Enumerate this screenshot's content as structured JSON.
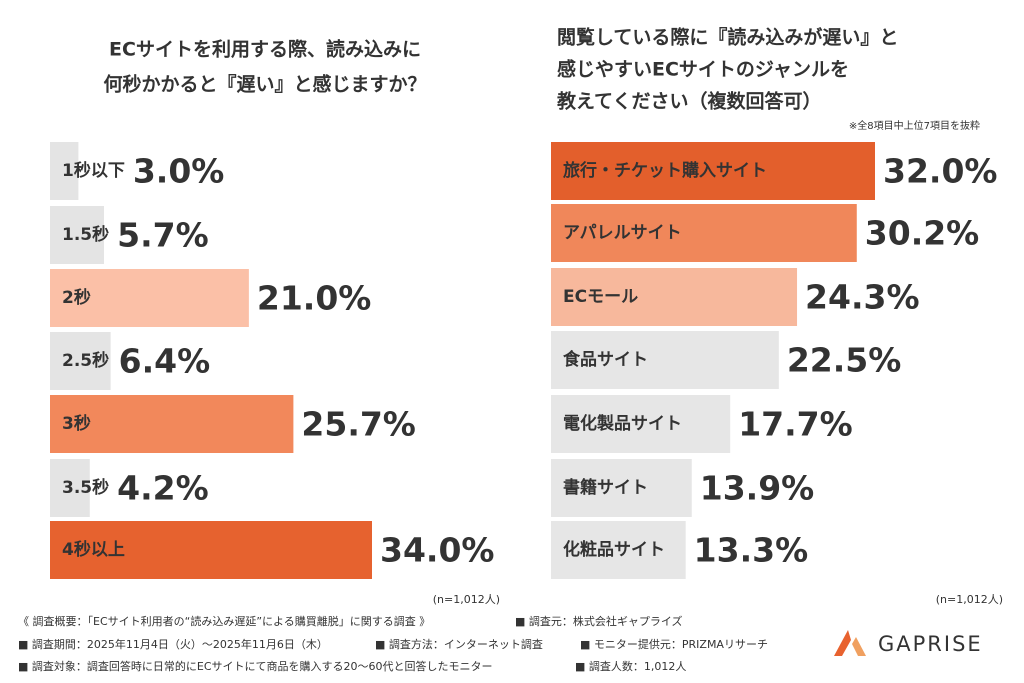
{
  "chart_data": [
    {
      "type": "bar",
      "orientation": "horizontal",
      "title": [
        "ECサイトを利用する際、読み込みに",
        "何秒かかると『遅い』と感じますか？"
      ],
      "categories": [
        "1秒以下",
        "1.5秒",
        "2秒",
        "2.5秒",
        "3秒",
        "3.5秒",
        "4秒以上"
      ],
      "values": [
        3.0,
        5.7,
        21.0,
        6.4,
        25.7,
        4.2,
        34.0
      ],
      "value_labels": [
        "3.0%",
        "5.7%",
        "21.0%",
        "6.4%",
        "25.7%",
        "4.2%",
        "34.0%"
      ],
      "colors": [
        "#e4e4e4",
        "#e4e4e4",
        "#fbc0a7",
        "#e4e4e4",
        "#f2885b",
        "#e4e4e4",
        "#e6622f"
      ],
      "value_colors": [
        "#4a4a4a",
        "#4a4a4a",
        "#fbc0a7",
        "#4a4a4a",
        "#f2885b",
        "#4a4a4a",
        "#e6622f"
      ],
      "category_colors": [
        "#555555",
        "#555555",
        "#ffffff",
        "#555555",
        "#ffffff",
        "#555555",
        "#ffffff"
      ],
      "sample_note": "(n=1,012人)"
    },
    {
      "type": "bar",
      "orientation": "horizontal",
      "title": [
        "閲覧している際に『読み込みが遅い』と",
        "感じやすいECサイトのジャンルを",
        "教えてください（複数回答可）"
      ],
      "subnote": "※全8項目中上位7項目を抜粋",
      "categories": [
        "旅行・チケット購入サイト",
        "アパレルサイト",
        "ECモール",
        "食品サイト",
        "電化製品サイト",
        "書籍サイト",
        "化粧品サイト"
      ],
      "values": [
        32.0,
        30.2,
        24.3,
        22.5,
        17.7,
        13.9,
        13.3
      ],
      "value_labels": [
        "32.0%",
        "30.2%",
        "24.3%",
        "22.5%",
        "17.7%",
        "13.9%",
        "13.3%"
      ],
      "colors": [
        "#e35f2c",
        "#f0875a",
        "#f7b89c",
        "#e6e6e6",
        "#e6e6e6",
        "#e6e6e6",
        "#e6e6e6"
      ],
      "value_colors": [
        "#e35f2c",
        "#f0875a",
        "#f7b89c",
        "#4a4a4a",
        "#4a4a4a",
        "#4a4a4a",
        "#4a4a4a"
      ],
      "category_colors": [
        "#ffffff",
        "#ffffff",
        "#ffffff",
        "#555555",
        "#555555",
        "#555555",
        "#555555"
      ],
      "sample_note": "(n=1,012人)"
    }
  ],
  "footer": {
    "rows": [
      [
        "《 調査概要：「ECサイト利用者の“読み込み遅延”による購買離脱」に関する調査 》",
        "■ 調査元：株式会社ギャプライズ"
      ],
      [
        "■ 調査期間：2025年11月4日（火）～2025年11月6日（木）",
        "■ 調査方法：インターネット調査",
        "■ モニター提供元：PRIZMAリサーチ"
      ],
      [
        "■ 調査対象：調査回答時に日常的にECサイトにて商品を購入する20～60代と回答したモニター",
        "■ 調査人数：1,012人"
      ]
    ]
  },
  "brand": "GAPRISE"
}
